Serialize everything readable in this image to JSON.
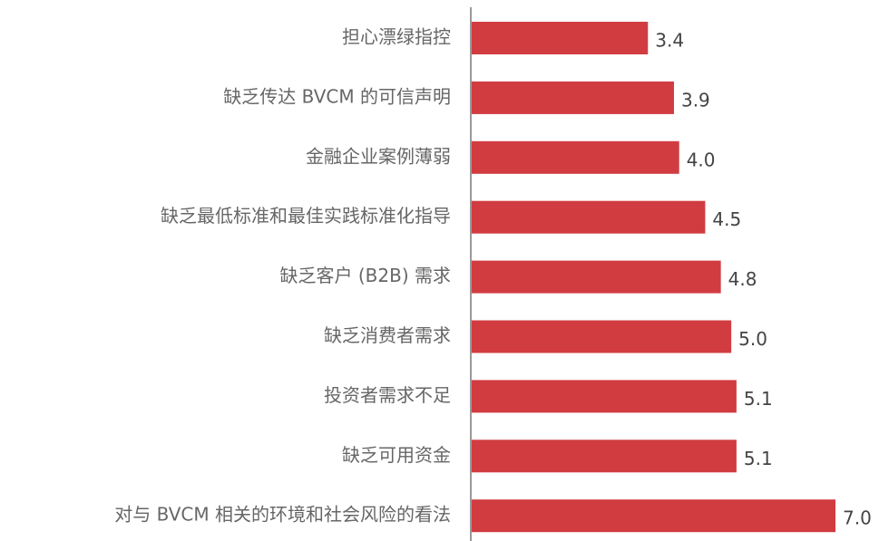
{
  "chart_data": {
    "type": "bar",
    "orientation": "horizontal",
    "categories": [
      "担心漂绿指控",
      "缺乏传达 BVCM 的可信声明",
      "金融企业案例薄弱",
      "缺乏最低标准和最佳实践标准化指导",
      "缺乏客户 (B2B) 需求",
      "缺乏消费者需求",
      "投资者需求不足",
      "缺乏可用资金",
      "对与 BVCM 相关的环境和社会风险的看法"
    ],
    "values": [
      3.4,
      3.9,
      4.0,
      4.5,
      4.8,
      5.0,
      5.1,
      5.1,
      7.0
    ],
    "value_labels": [
      "3.4",
      "3.9",
      "4.0",
      "4.5",
      "4.8",
      "5.0",
      "5.1",
      "5.1",
      "7.0"
    ],
    "color": "#d13c41",
    "xlim": [
      0,
      7
    ]
  }
}
